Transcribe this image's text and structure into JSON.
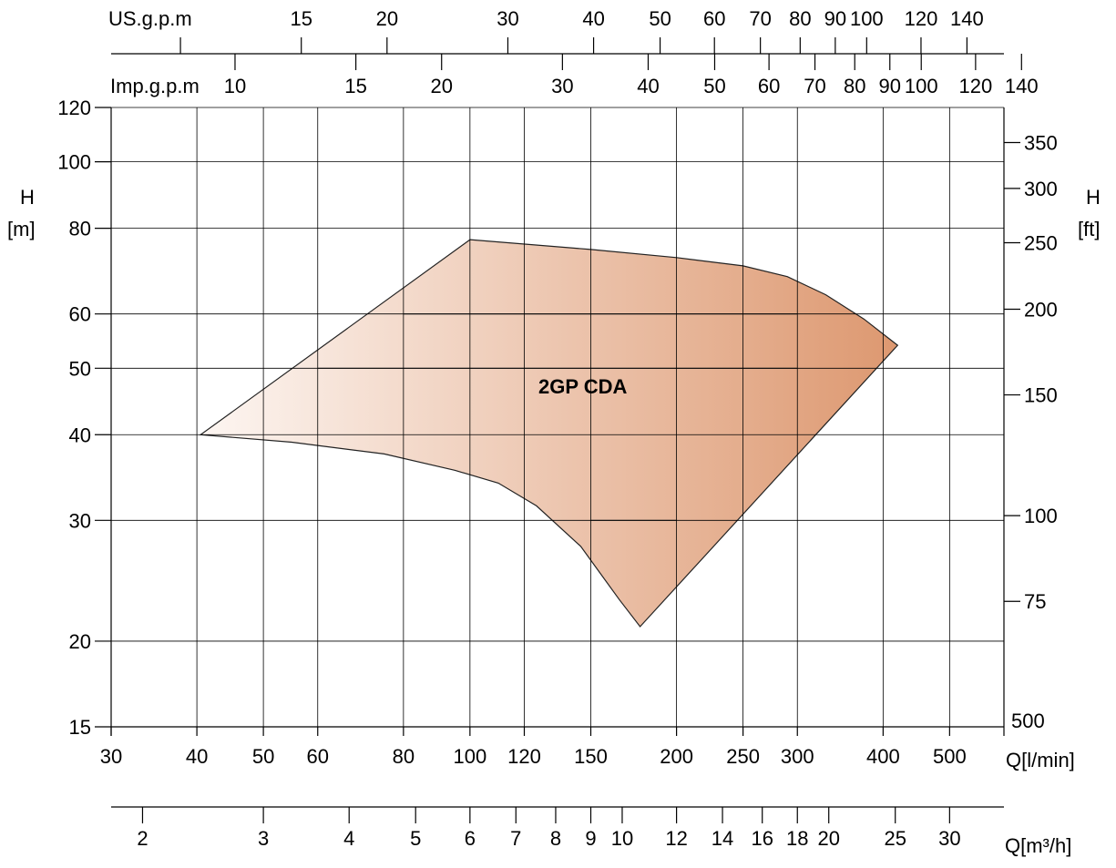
{
  "chart_data": {
    "type": "area",
    "title": "",
    "x_scale": "log",
    "y_scale": "log",
    "xlabel": "Q[l/min]",
    "ylabel_left": [
      "H",
      "[m]"
    ],
    "ylabel_right": [
      "H",
      "[ft]"
    ],
    "xlim": [
      30,
      600
    ],
    "ylim": [
      15,
      120
    ],
    "x_ticks": [
      30,
      40,
      50,
      60,
      80,
      100,
      120,
      150,
      200,
      250,
      300,
      400,
      500
    ],
    "y_ticks_left": [
      15,
      20,
      30,
      40,
      50,
      60,
      80,
      100,
      120
    ],
    "y_ticks_right_ft": [
      75,
      100,
      150,
      200,
      250,
      300,
      350
    ],
    "y_right_extra_label": "500",
    "grid": true,
    "top_axis_us": {
      "label": "US.g.p.m",
      "ticks": [
        10,
        15,
        20,
        30,
        40,
        50,
        60,
        70,
        80,
        90,
        100,
        120,
        140
      ],
      "tick_labels": [
        "",
        "15",
        "20",
        "30",
        "40",
        "50",
        "60",
        "70",
        "80",
        "90",
        "100",
        "120",
        "140"
      ]
    },
    "top_axis_imp": {
      "label": "Imp.g.p.m",
      "ticks": [
        10,
        15,
        20,
        30,
        40,
        50,
        60,
        70,
        80,
        90,
        100,
        120,
        140
      ],
      "tick_labels": [
        "10",
        "15",
        "20",
        "30",
        "40",
        "50",
        "60",
        "70",
        "80",
        "90",
        "100",
        "120",
        "140"
      ]
    },
    "bottom_axis_m3h": {
      "label": "Q[m³/h]",
      "ticks": [
        2,
        3,
        4,
        5,
        6,
        7,
        8,
        9,
        10,
        12,
        14,
        16,
        18,
        20,
        25,
        30
      ],
      "tick_labels": [
        "2",
        "3",
        "4",
        "5",
        "6",
        "7",
        "8",
        "9",
        "10",
        "12",
        "14",
        "16",
        "18",
        "20",
        "25",
        "30"
      ]
    },
    "region": {
      "name": "2GP CDA",
      "boundary": [
        {
          "x": 40.5,
          "y": 40
        },
        {
          "x": 55,
          "y": 39
        },
        {
          "x": 75,
          "y": 37.5
        },
        {
          "x": 95,
          "y": 35.5
        },
        {
          "x": 110,
          "y": 34
        },
        {
          "x": 125,
          "y": 31.5
        },
        {
          "x": 145,
          "y": 27.5
        },
        {
          "x": 165,
          "y": 23
        },
        {
          "x": 177,
          "y": 21
        },
        {
          "x": 420,
          "y": 54
        },
        {
          "x": 375,
          "y": 59
        },
        {
          "x": 330,
          "y": 64
        },
        {
          "x": 290,
          "y": 68
        },
        {
          "x": 250,
          "y": 70.5
        },
        {
          "x": 200,
          "y": 72.5
        },
        {
          "x": 150,
          "y": 74.5
        },
        {
          "x": 100,
          "y": 77
        }
      ],
      "fill_start": "#fdf6f2",
      "fill_end": "#dd9870",
      "stroke": "#222222"
    },
    "inner_lines": [
      {
        "x": [
          80,
          300
        ],
        "y": 60
      },
      {
        "x": [
          60,
          300
        ],
        "y": 50
      },
      {
        "x": [
          150,
          200
        ],
        "y": 30
      }
    ]
  }
}
